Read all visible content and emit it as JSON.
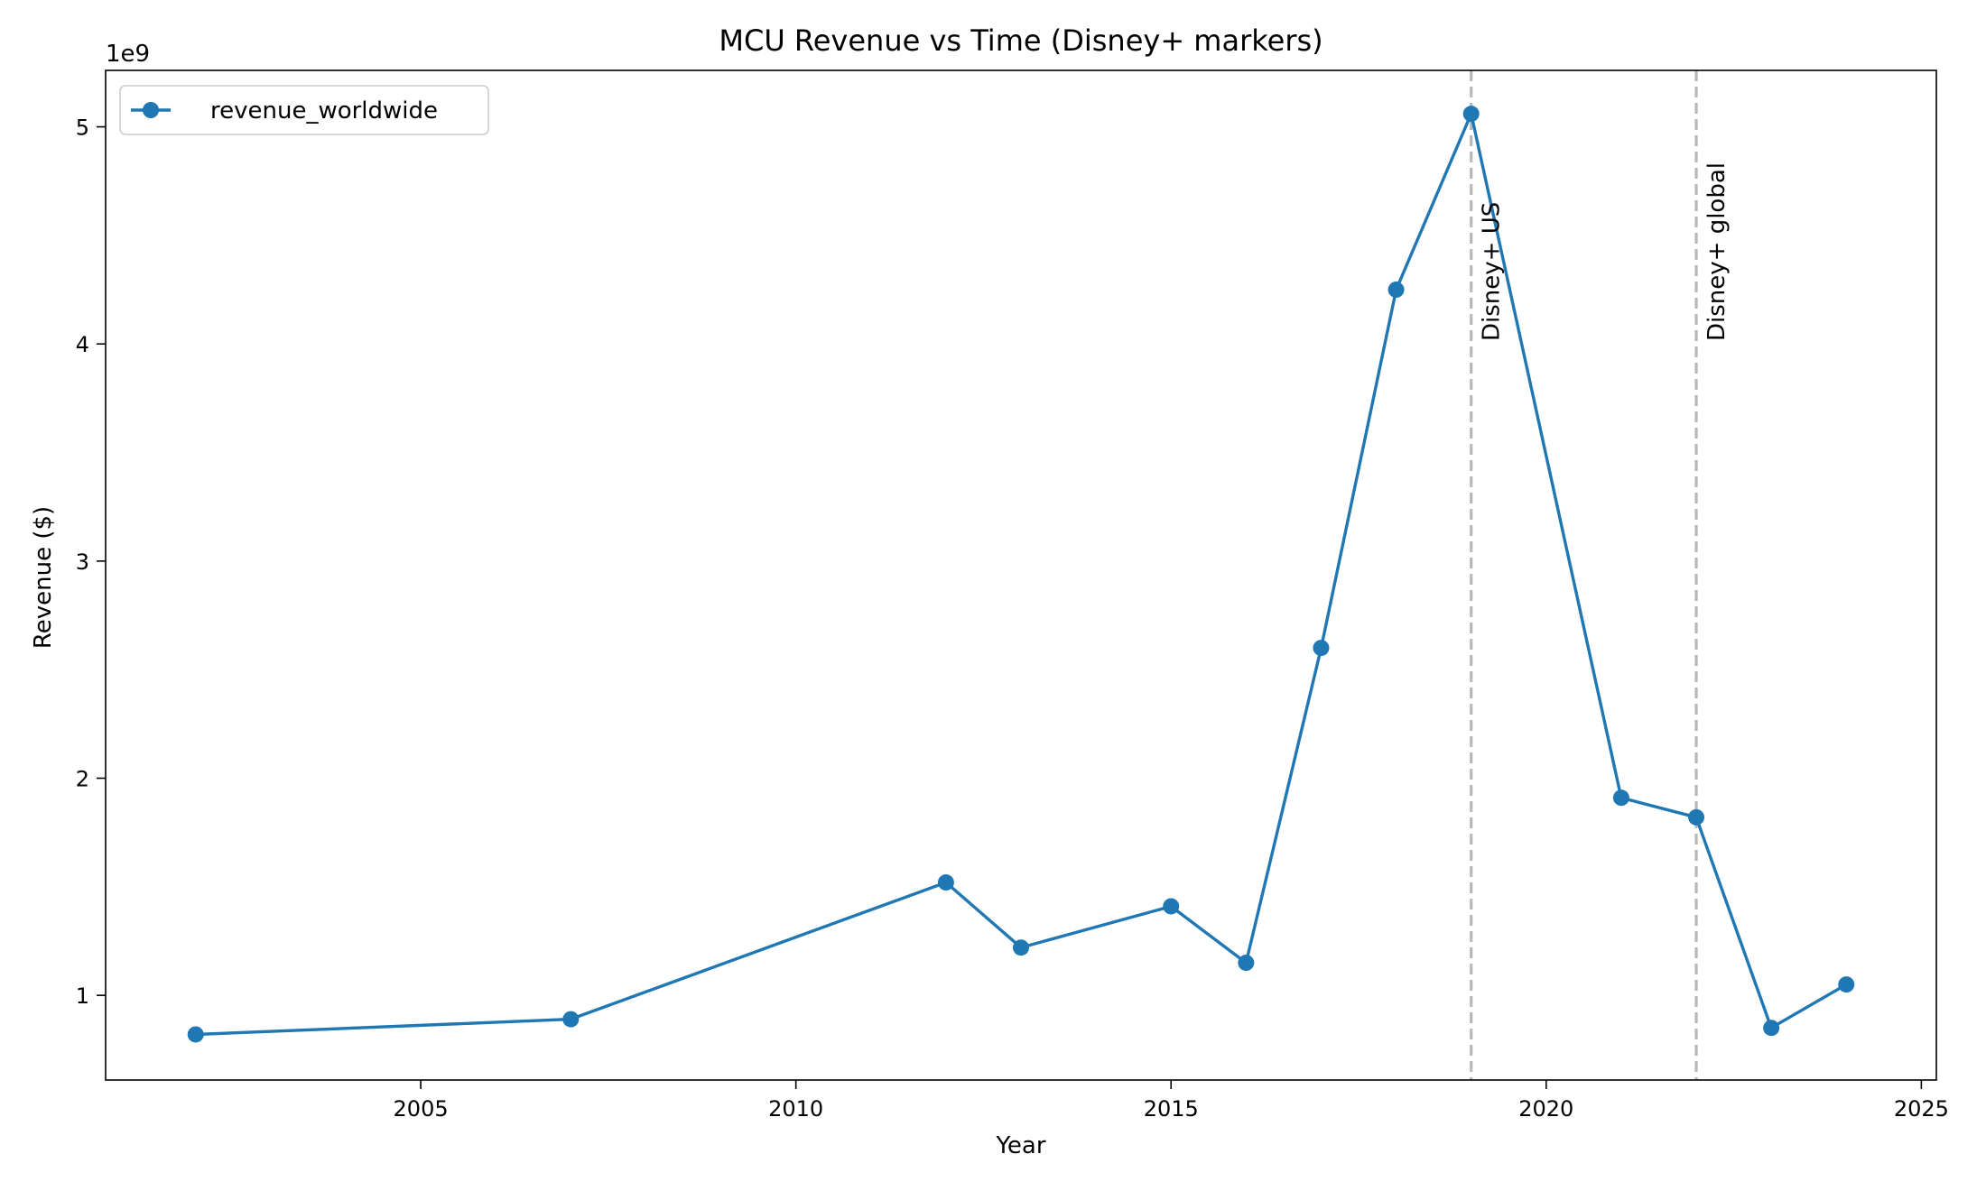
{
  "chart_data": {
    "type": "line",
    "title": "MCU Revenue vs Time (Disney+ markers)",
    "xlabel": "Year",
    "ylabel": "Revenue ($)",
    "y_offset_label": "1e9",
    "y_scale_factor": 1000000000,
    "xlim": [
      2000.8,
      2025.2
    ],
    "ylim": [
      0.61,
      5.26
    ],
    "x_ticks": [
      2005,
      2010,
      2015,
      2020,
      2025
    ],
    "y_ticks": [
      1,
      2,
      3,
      4,
      5
    ],
    "grid": false,
    "legend_position": "top-left",
    "series": [
      {
        "name": "revenue_worldwide",
        "color": "#1f77b4",
        "marker": "circle",
        "x": [
          2002,
          2007,
          2012,
          2013,
          2015,
          2016,
          2017,
          2018,
          2019,
          2021,
          2022,
          2023,
          2024
        ],
        "y": [
          0.82,
          0.89,
          1.52,
          1.22,
          1.41,
          1.15,
          2.6,
          4.25,
          5.06,
          1.91,
          1.82,
          0.85,
          1.05
        ]
      }
    ],
    "annotations": [
      {
        "x": 2019,
        "label": "Disney+ US",
        "color": "#b8b8b8",
        "style": "dashed"
      },
      {
        "x": 2022,
        "label": "Disney+ global",
        "color": "#b8b8b8",
        "style": "dashed"
      }
    ]
  }
}
